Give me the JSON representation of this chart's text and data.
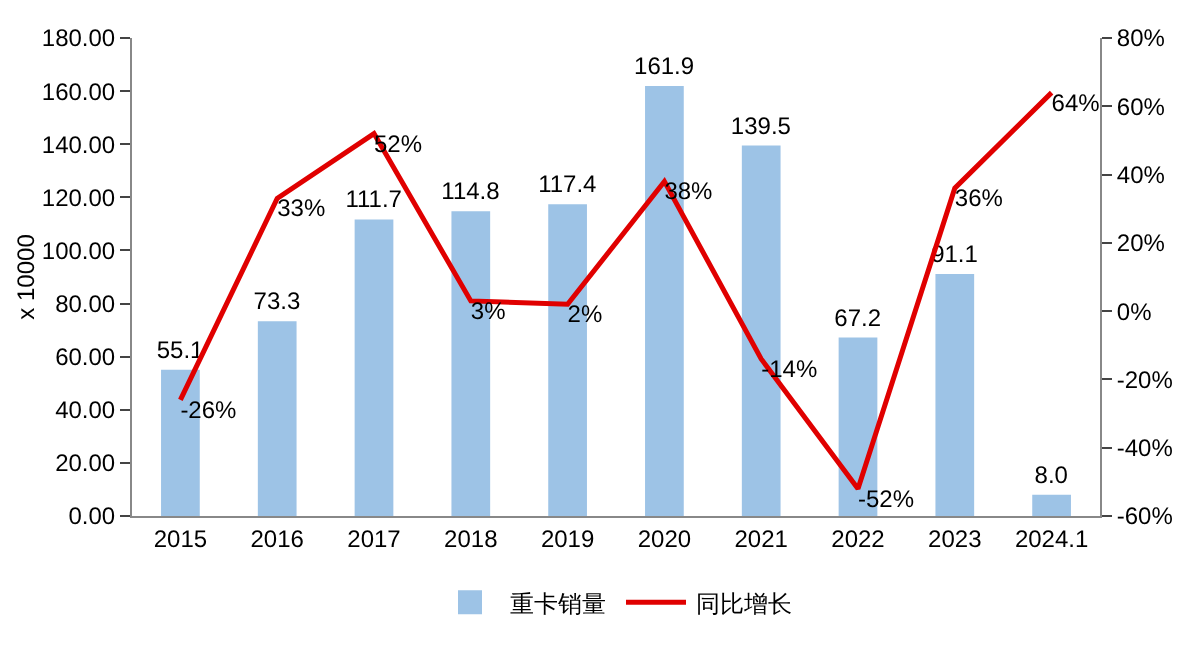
{
  "chart_data": {
    "type": "bar",
    "ylabel": "x 10000",
    "categories": [
      "2015",
      "2016",
      "2017",
      "2018",
      "2019",
      "2020",
      "2021",
      "2022",
      "2023",
      "2024.1"
    ],
    "series": [
      {
        "name": "重卡销量",
        "color": "#9dc3e6",
        "values": [
          55.1,
          73.3,
          111.7,
          114.8,
          117.4,
          161.9,
          139.5,
          67.2,
          91.1,
          8.0
        ],
        "value_labels": [
          "55.1",
          "73.3",
          "111.7",
          "114.8",
          "117.4",
          "161.9",
          "139.5",
          "67.2",
          "91.1",
          "8.0"
        ]
      },
      {
        "name": "同比增长",
        "type": "line",
        "axis": "y2",
        "color": "#e00000",
        "values": [
          -26,
          33,
          52,
          3,
          2,
          38,
          -14,
          -52,
          36,
          64
        ],
        "value_labels": [
          "-26%",
          "33%",
          "52%",
          "3%",
          "2%",
          "38%",
          "-14%",
          "-52%",
          "36%",
          "64%"
        ]
      }
    ],
    "ylim": [
      0,
      180
    ],
    "yticks": [
      {
        "value": 0,
        "label": "0.00"
      },
      {
        "value": 20,
        "label": "20.00"
      },
      {
        "value": 40,
        "label": "40.00"
      },
      {
        "value": 60,
        "label": "60.00"
      },
      {
        "value": 80,
        "label": "80.00"
      },
      {
        "value": 100,
        "label": "100.00"
      },
      {
        "value": 120,
        "label": "120.00"
      },
      {
        "value": 140,
        "label": "140.00"
      },
      {
        "value": 160,
        "label": "160.00"
      },
      {
        "value": 180,
        "label": "180.00"
      }
    ],
    "y2lim": [
      -60,
      80
    ],
    "y2ticks": [
      {
        "value": -60,
        "label": "-60%"
      },
      {
        "value": -40,
        "label": "-40%"
      },
      {
        "value": -20,
        "label": "-20%"
      },
      {
        "value": 0,
        "label": "0%"
      },
      {
        "value": 20,
        "label": "20%"
      },
      {
        "value": 40,
        "label": "40%"
      },
      {
        "value": 60,
        "label": "60%"
      },
      {
        "value": 80,
        "label": "80%"
      }
    ],
    "grid": false,
    "legend": "bottom",
    "marker": "none",
    "line_style": "solid"
  }
}
